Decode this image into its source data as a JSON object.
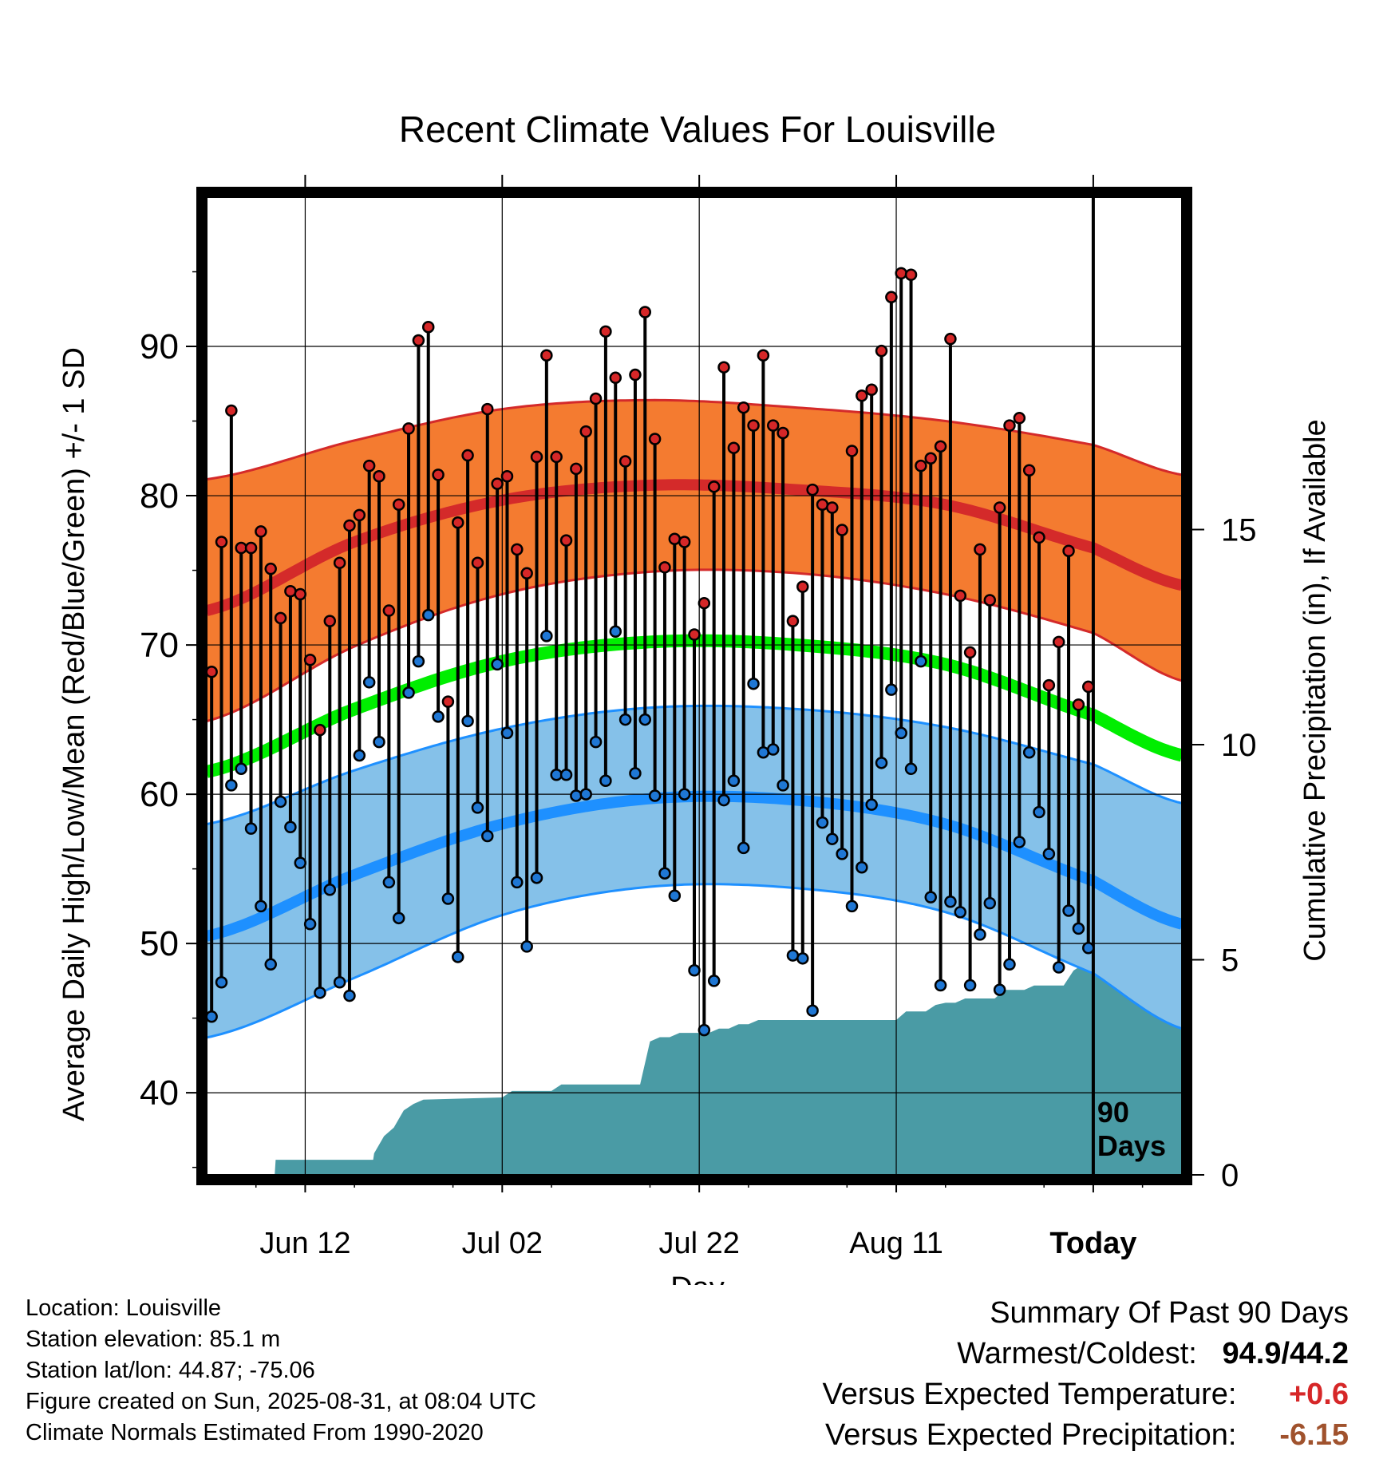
{
  "chart_data": {
    "type": "line",
    "title": "Recent Climate Values For Louisville",
    "xlabel": "Day",
    "ylabel": "Average Daily High/Low/Mean (Red/Blue/Green) +/- 1 SD",
    "y2label": "Cumulative Precipitation (in), If Available",
    "ylim": [
      34.5,
      100
    ],
    "y2lim": [
      0,
      20
    ],
    "x_range_days": [
      0,
      99
    ],
    "x_ticks": [
      {
        "label": "Jun 12",
        "day": 10
      },
      {
        "label": "Jul 02",
        "day": 30
      },
      {
        "label": "Jul 22",
        "day": 50
      },
      {
        "label": "Aug 11",
        "day": 70
      },
      {
        "label": "Today",
        "day": 90
      }
    ],
    "y_ticks": [
      40,
      50,
      60,
      70,
      80,
      90
    ],
    "y2_ticks": [
      0,
      5,
      10,
      15
    ],
    "today_day": 90,
    "today_label_1": "90",
    "today_label_2": "Days",
    "normal_high": {
      "days": [
        0,
        15,
        30,
        45,
        60,
        75,
        90,
        99
      ],
      "values": [
        72.3,
        76.9,
        79.7,
        80.7,
        80.4,
        79.4,
        76.5,
        74.0
      ]
    },
    "normal_high_upper": {
      "days": [
        0,
        15,
        30,
        45,
        60,
        75,
        90,
        99
      ],
      "values": [
        81.1,
        83.7,
        85.8,
        86.4,
        85.9,
        85.0,
        83.4,
        81.4
      ]
    },
    "normal_high_lower": {
      "days": [
        0,
        15,
        30,
        45,
        60,
        75,
        90,
        99
      ],
      "values": [
        64.9,
        69.9,
        73.4,
        74.9,
        74.8,
        73.4,
        70.8,
        67.6
      ]
    },
    "normal_low": {
      "days": [
        0,
        15,
        30,
        45,
        60,
        75,
        90,
        99
      ],
      "values": [
        50.5,
        54.6,
        58.0,
        59.7,
        59.6,
        58.0,
        54.2,
        51.3
      ]
    },
    "normal_low_upper": {
      "days": [
        0,
        15,
        30,
        45,
        60,
        75,
        90,
        99
      ],
      "values": [
        58.0,
        61.6,
        64.4,
        65.8,
        65.7,
        64.5,
        62.0,
        59.4
      ]
    },
    "normal_low_lower": {
      "days": [
        0,
        15,
        30,
        45,
        60,
        75,
        90,
        99
      ],
      "values": [
        43.7,
        47.7,
        51.9,
        53.8,
        53.7,
        52.1,
        48.0,
        44.3
      ]
    },
    "normal_mean": {
      "days": [
        0,
        15,
        30,
        45,
        60,
        75,
        90,
        99
      ],
      "values": [
        61.5,
        65.7,
        68.9,
        70.2,
        70.0,
        68.7,
        65.3,
        62.6
      ]
    },
    "series": [
      {
        "name": "High",
        "color": "#d62728",
        "values": [
          68.2,
          76.9,
          85.7,
          76.5,
          76.5,
          77.6,
          75.1,
          71.8,
          73.6,
          73.4,
          69.0,
          64.3,
          71.6,
          75.5,
          78.0,
          78.7,
          82.0,
          81.3,
          72.3,
          79.4,
          84.5,
          90.4,
          91.3,
          81.4,
          66.2,
          78.2,
          82.7,
          75.5,
          85.8,
          80.8,
          81.3,
          76.4,
          74.8,
          82.6,
          89.4,
          82.6,
          77.0,
          81.8,
          84.3,
          86.5,
          91.0,
          87.9,
          82.3,
          88.1,
          92.3,
          83.8,
          75.2,
          77.1,
          76.9,
          70.7,
          72.8,
          80.6,
          88.6,
          83.2,
          85.9,
          84.7,
          89.4,
          84.7,
          84.2,
          71.6,
          73.9,
          80.4,
          79.4,
          79.2,
          77.7,
          83.0,
          86.7,
          87.1,
          89.7,
          93.3,
          94.9,
          94.8,
          82.0,
          82.5,
          83.3,
          90.5,
          73.3,
          69.5,
          76.4,
          73.0,
          79.2,
          84.7,
          85.2,
          81.7,
          77.2,
          67.3,
          70.2,
          76.3,
          66.0,
          67.2
        ]
      },
      {
        "name": "Low",
        "color": "#1f77d4",
        "values": [
          45.1,
          47.4,
          60.6,
          61.7,
          57.7,
          52.5,
          48.6,
          59.5,
          57.8,
          55.4,
          51.3,
          46.7,
          53.6,
          47.4,
          46.5,
          62.6,
          67.5,
          63.5,
          54.1,
          51.7,
          66.8,
          68.9,
          72.0,
          65.2,
          53.0,
          49.1,
          64.9,
          59.1,
          57.2,
          68.7,
          64.1,
          54.1,
          49.8,
          54.4,
          70.6,
          61.3,
          61.3,
          59.9,
          60.0,
          63.5,
          60.9,
          70.9,
          65.0,
          61.4,
          65.0,
          59.9,
          54.7,
          53.2,
          60.0,
          48.2,
          44.2,
          47.5,
          59.6,
          60.9,
          56.4,
          67.4,
          62.8,
          63.0,
          60.6,
          49.2,
          49.0,
          45.5,
          58.1,
          57.0,
          56.0,
          52.5,
          55.1,
          59.3,
          62.1,
          67.0,
          64.1,
          61.7,
          68.9,
          53.1,
          47.2,
          52.8,
          52.1,
          47.2,
          50.6,
          52.7,
          46.9,
          48.6,
          56.8,
          62.8,
          58.8,
          56.0,
          48.4,
          52.2,
          51.0,
          49.7
        ]
      }
    ],
    "precip": {
      "days": [
        0,
        6.9,
        7.0,
        16.9,
        17.0,
        18.0,
        19.0,
        20.0,
        21.0,
        22.0,
        30.0,
        31.0,
        35.0,
        36.0,
        44.0,
        45.0,
        46.0,
        47.0,
        48.0,
        51.0,
        52.0,
        53.0,
        54.0,
        55.0,
        56.0,
        57.0,
        70.0,
        71.0,
        73.0,
        74.0,
        75.0,
        76.0,
        77.0,
        80.0,
        81.0,
        83.0,
        84.0,
        87.0,
        88.0,
        89.0,
        99.0
      ],
      "values": [
        0,
        0,
        0.35,
        0.35,
        0.5,
        0.9,
        1.1,
        1.5,
        1.65,
        1.75,
        1.8,
        1.95,
        1.95,
        2.1,
        2.1,
        3.1,
        3.2,
        3.2,
        3.3,
        3.3,
        3.4,
        3.4,
        3.5,
        3.5,
        3.6,
        3.6,
        3.6,
        3.8,
        3.8,
        3.95,
        4.0,
        4.0,
        4.1,
        4.1,
        4.3,
        4.3,
        4.4,
        4.4,
        4.75,
        4.9,
        4.9
      ]
    }
  },
  "info": {
    "location": "Location: Louisville",
    "elevation": "Station elevation: 85.1 m",
    "latlon": "Station lat/lon: 44.87; -75.06",
    "created": "Figure created on Sun, 2025-08-31, at 08:04 UTC",
    "normals": "Climate Normals Estimated From 1990-2020"
  },
  "summary": {
    "heading": "Summary Of Past 90 Days",
    "warmest_label": "Warmest/Coldest:",
    "warmest_value": "94.9/44.2",
    "temp_label": "Versus Expected Temperature:",
    "temp_value": "+0.6",
    "temp_color": "#d62728",
    "precip_label": "Versus Expected Precipitation:",
    "precip_value": "-6.15",
    "precip_color": "#a0522d"
  },
  "colors": {
    "high_band": "#f47b30",
    "high_line": "#d42a2a",
    "low_band": "#85c1e9",
    "low_line": "#1e90ff",
    "mean_line": "#00ee00",
    "precip_fill": "#4a9ba5"
  }
}
